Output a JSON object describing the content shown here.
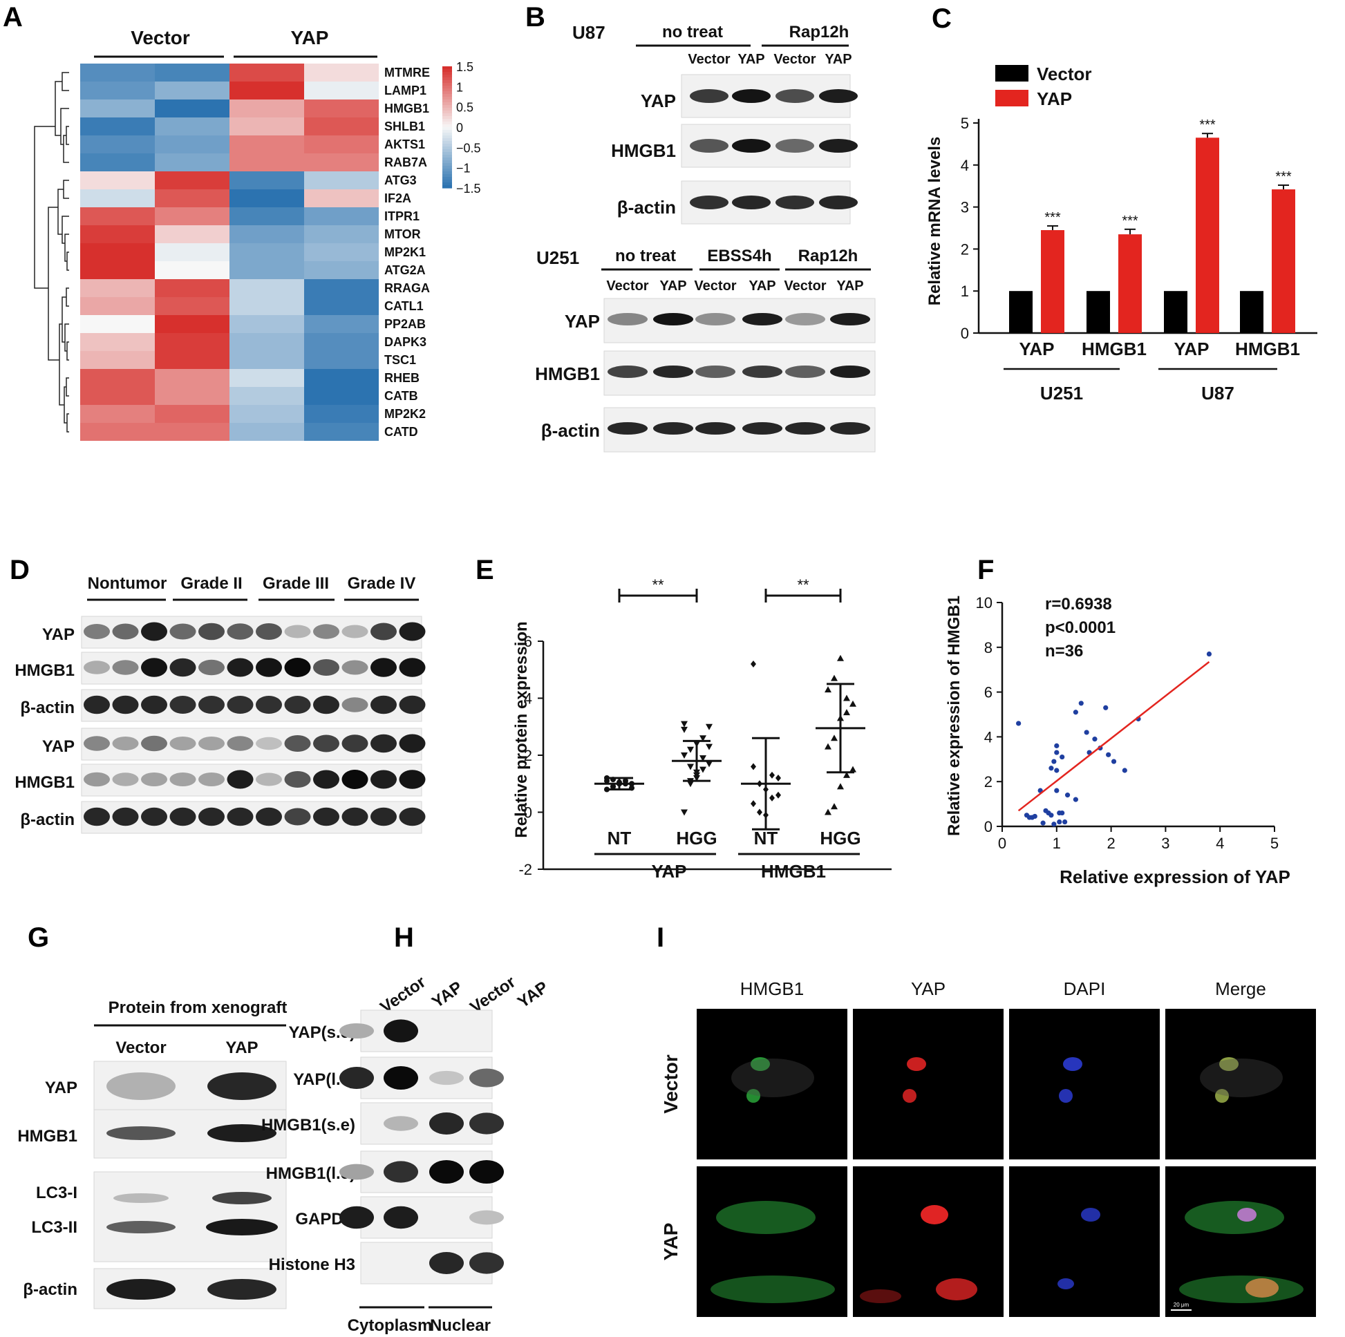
{
  "panel_letters": [
    "A",
    "B",
    "C",
    "D",
    "E",
    "F",
    "G",
    "H",
    "I"
  ],
  "A": {
    "groups": [
      "Vector",
      "YAP"
    ],
    "genes": [
      "MTMRE",
      "LAMP1",
      "HMGB1",
      "SHLB1",
      "AKTS1",
      "RAB7A",
      "ATG3",
      "IF2A",
      "ITPR1",
      "MTOR",
      "MP2K1",
      "ATG2A",
      "RRAGA",
      "CATL1",
      "PP2AB",
      "DAPK3",
      "TSC1",
      "RHEB",
      "CATB",
      "MP2K2",
      "CATD"
    ],
    "values": [
      [
        -1.2,
        -1.3,
        1.3,
        0.2
      ],
      [
        -1.1,
        -0.8,
        1.5,
        -0.1
      ],
      [
        -0.8,
        -1.6,
        0.6,
        1.1
      ],
      [
        -1.4,
        -0.9,
        0.5,
        1.2
      ],
      [
        -1.2,
        -1.0,
        0.9,
        1.0
      ],
      [
        -1.3,
        -0.9,
        0.9,
        0.9
      ],
      [
        0.2,
        1.4,
        -1.3,
        -0.5
      ],
      [
        -0.3,
        1.2,
        -1.5,
        0.4
      ],
      [
        1.2,
        0.9,
        -1.3,
        -1.0
      ],
      [
        1.4,
        0.3,
        -1.0,
        -0.8
      ],
      [
        1.5,
        -0.1,
        -0.9,
        -0.7
      ],
      [
        1.5,
        0.0,
        -0.9,
        -0.8
      ],
      [
        0.5,
        1.3,
        -0.4,
        -1.4
      ],
      [
        0.6,
        1.2,
        -0.4,
        -1.4
      ],
      [
        0.0,
        1.5,
        -0.6,
        -1.1
      ],
      [
        0.4,
        1.4,
        -0.7,
        -1.2
      ],
      [
        0.5,
        1.4,
        -0.7,
        -1.2
      ],
      [
        1.2,
        0.8,
        -0.3,
        -1.6
      ],
      [
        1.2,
        0.8,
        -0.5,
        -1.5
      ],
      [
        0.9,
        1.1,
        -0.6,
        -1.4
      ],
      [
        1.0,
        1.0,
        -0.7,
        -1.3
      ]
    ],
    "scale_ticks": [
      "1.5",
      "1",
      "0.5",
      "0",
      "−0.5",
      "−1",
      "−1.5"
    ],
    "colors": {
      "high": "#d7302d",
      "mid": "#f7f7f7",
      "low": "#2c73b0"
    }
  },
  "B": {
    "u87": {
      "cell": "U87",
      "conds": [
        "no treat",
        "Rap12h"
      ],
      "lanes": [
        "Vector",
        "YAP",
        "Vector",
        "YAP"
      ],
      "rows": [
        "YAP",
        "HMGB1",
        "β-actin"
      ]
    },
    "u251": {
      "cell": "U251",
      "conds": [
        "no treat",
        "EBSS4h",
        "Rap12h"
      ],
      "lanes": [
        "Vector",
        "YAP",
        "Vector",
        "YAP",
        "Vector",
        "YAP"
      ],
      "rows": [
        "YAP",
        "HMGB1",
        "β-actin"
      ]
    }
  },
  "C": {
    "legend": [
      "Vector",
      "YAP"
    ],
    "ylabel": "Relative mRNA levels",
    "yticks": [
      "0",
      "1",
      "2",
      "3",
      "4",
      "5"
    ],
    "genes": [
      "YAP",
      "HMGB1",
      "YAP",
      "HMGB1"
    ],
    "cells": [
      "U251",
      "U87"
    ],
    "stars": "***"
  },
  "D": {
    "groups": [
      "Nontumor",
      "Grade II",
      "Grade III",
      "Grade IV"
    ],
    "rows": [
      "YAP",
      "HMGB1",
      "β-actin",
      "YAP",
      "HMGB1",
      "β-actin"
    ]
  },
  "E": {
    "ylabel": "Relative protein expression",
    "yticks": [
      "-2",
      "0",
      "2",
      "4",
      "6"
    ],
    "xcats": [
      "NT",
      "HGG",
      "NT",
      "HGG"
    ],
    "groups": [
      "YAP",
      "HMGB1"
    ],
    "sig": "**"
  },
  "F": {
    "r": "r=0.6938",
    "p": "p<0.0001",
    "n": "n=36",
    "xlabel": "Relative expression of YAP",
    "ylabel": "Relative expression of HMGB1",
    "xticks": [
      "0",
      "1",
      "2",
      "3",
      "4",
      "5"
    ],
    "yticks": [
      "0",
      "2",
      "4",
      "6",
      "8",
      "10"
    ]
  },
  "G": {
    "title": "Protein from xenograft",
    "lanes": [
      "Vector",
      "YAP"
    ],
    "rows": [
      "YAP",
      "HMGB1",
      "LC3-I",
      "LC3-II",
      "β-actin"
    ]
  },
  "H": {
    "lanes": [
      "Vector",
      "YAP",
      "Vector",
      "YAP"
    ],
    "rows": [
      "YAP(s.e)",
      "YAP(l.e)",
      "HMGB1(s.e)",
      "HMGB1(l.e)",
      "GAPDH",
      "Histone H3"
    ],
    "fractions": [
      "Cytoplasm",
      "Nuclear"
    ]
  },
  "I": {
    "cols": [
      "HMGB1",
      "YAP",
      "DAPI",
      "Merge"
    ],
    "rows": [
      "Vector",
      "YAP"
    ],
    "scalebar": "20 μm"
  },
  "chart_data": [
    {
      "type": "heatmap",
      "rows": [
        "MTMRE",
        "LAMP1",
        "HMGB1",
        "SHLB1",
        "AKTS1",
        "RAB7A",
        "ATG3",
        "IF2A",
        "ITPR1",
        "MTOR",
        "MP2K1",
        "ATG2A",
        "RRAGA",
        "CATL1",
        "PP2AB",
        "DAPK3",
        "TSC1",
        "RHEB",
        "CATB",
        "MP2K2",
        "CATD"
      ],
      "columns": [
        "Vector",
        "Vector",
        "YAP",
        "YAP"
      ],
      "range": [
        -1.5,
        1.5
      ]
    },
    {
      "type": "bar",
      "categories": [
        "U251 YAP",
        "U251 HMGB1",
        "U87 YAP",
        "U87 HMGB1"
      ],
      "series": [
        {
          "name": "Vector",
          "values": [
            1,
            1,
            1,
            1
          ]
        },
        {
          "name": "YAP",
          "values": [
            2.45,
            2.35,
            4.65,
            3.42
          ],
          "errors": [
            0.1,
            0.12,
            0.1,
            0.1
          ]
        }
      ],
      "ylabel": "Relative mRNA levels",
      "ylim": [
        0,
        5
      ]
    },
    {
      "type": "scatter",
      "series": [
        {
          "name": "YAP NT",
          "x": 1,
          "mean": 1.0,
          "sd": 0.2
        },
        {
          "name": "YAP HGG",
          "x": 2,
          "mean": 1.8,
          "sd": 0.7
        },
        {
          "name": "HMGB1 NT",
          "x": 3,
          "mean": 1.0,
          "sd": 1.6
        },
        {
          "name": "HMGB1 HGG",
          "x": 4,
          "mean": 2.95,
          "sd": 1.55
        }
      ],
      "ylabel": "Relative protein expression",
      "ylim": [
        -2,
        6
      ]
    },
    {
      "type": "scatter",
      "xlabel": "Relative expression of YAP",
      "ylabel": "Relative expression of HMGB1",
      "xlim": [
        0,
        5
      ],
      "ylim": [
        0,
        10
      ],
      "points": [
        [
          0.3,
          4.6
        ],
        [
          0.45,
          0.5
        ],
        [
          0.5,
          0.4
        ],
        [
          0.55,
          0.4
        ],
        [
          0.6,
          0.45
        ],
        [
          0.7,
          1.6
        ],
        [
          0.8,
          0.7
        ],
        [
          0.85,
          0.6
        ],
        [
          0.9,
          0.5
        ],
        [
          0.9,
          2.6
        ],
        [
          0.95,
          2.9
        ],
        [
          0.95,
          0.1
        ],
        [
          1.0,
          1.6
        ],
        [
          1.0,
          3.3
        ],
        [
          1.0,
          2.5
        ],
        [
          1.0,
          3.6
        ],
        [
          1.05,
          0.6
        ],
        [
          1.05,
          0.2
        ],
        [
          1.1,
          3.1
        ],
        [
          1.1,
          0.6
        ],
        [
          1.15,
          0.2
        ],
        [
          1.35,
          5.1
        ],
        [
          1.35,
          1.2
        ],
        [
          1.45,
          5.5
        ],
        [
          1.55,
          4.2
        ],
        [
          1.6,
          3.3
        ],
        [
          1.7,
          3.9
        ],
        [
          1.8,
          3.5
        ],
        [
          1.9,
          5.3
        ],
        [
          1.95,
          3.2
        ],
        [
          2.05,
          2.9
        ],
        [
          2.25,
          2.5
        ],
        [
          2.5,
          4.8
        ],
        [
          3.8,
          7.7
        ],
        [
          0.75,
          0.15
        ],
        [
          1.2,
          1.4
        ]
      ],
      "fit": {
        "x": [
          0.3,
          3.8
        ],
        "y": [
          0.7,
          7.35
        ]
      }
    }
  ]
}
